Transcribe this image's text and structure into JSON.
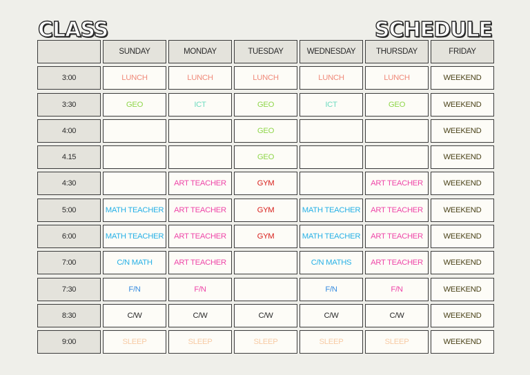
{
  "title": {
    "left": "CLASS",
    "right": "SCHEDULE"
  },
  "days": [
    "SUNDAY",
    "MONDAY",
    "TUESDAY",
    "WEDNESDAY",
    "THURSDAY",
    "FRIDAY"
  ],
  "colors": {
    "lunch": "#f08a7a",
    "geo": "#8fd64a",
    "ict": "#6fdcc0",
    "gym": "#d8201c",
    "art": "#ee46a8",
    "math": "#26b0e6",
    "fn_blue": "#3a8de0",
    "fn_pink": "#ee46a8",
    "cw": "#2a2a2a",
    "sleep": "#f7caa4",
    "weekend": "#4a4218",
    "empty": "#2a2a2a"
  },
  "rows": [
    {
      "time": "3:00",
      "cells": [
        {
          "text": "LUNCH",
          "color": "lunch"
        },
        {
          "text": "LUNCH",
          "color": "lunch"
        },
        {
          "text": "LUNCH",
          "color": "lunch"
        },
        {
          "text": "LUNCH",
          "color": "lunch"
        },
        {
          "text": "LUNCH",
          "color": "lunch"
        },
        {
          "text": "WEEKEND",
          "color": "weekend"
        }
      ]
    },
    {
      "time": "3:30",
      "cells": [
        {
          "text": "GEO",
          "color": "geo"
        },
        {
          "text": "ICT",
          "color": "ict"
        },
        {
          "text": "GEO",
          "color": "geo"
        },
        {
          "text": "ICT",
          "color": "ict"
        },
        {
          "text": "GEO",
          "color": "geo"
        },
        {
          "text": "WEEKEND",
          "color": "weekend"
        }
      ]
    },
    {
      "time": "4:00",
      "cells": [
        {
          "text": "",
          "color": "empty"
        },
        {
          "text": "",
          "color": "empty"
        },
        {
          "text": "GEO",
          "color": "geo"
        },
        {
          "text": "",
          "color": "empty"
        },
        {
          "text": "",
          "color": "empty"
        },
        {
          "text": "WEEKEND",
          "color": "weekend"
        }
      ]
    },
    {
      "time": "4.15",
      "cells": [
        {
          "text": "",
          "color": "empty"
        },
        {
          "text": "",
          "color": "empty"
        },
        {
          "text": "GEO",
          "color": "geo"
        },
        {
          "text": "",
          "color": "empty"
        },
        {
          "text": "",
          "color": "empty"
        },
        {
          "text": "WEEKEND",
          "color": "weekend"
        }
      ]
    },
    {
      "time": "4:30",
      "cells": [
        {
          "text": "",
          "color": "empty"
        },
        {
          "text": "ART TEACHER",
          "color": "art"
        },
        {
          "text": "GYM",
          "color": "gym"
        },
        {
          "text": "",
          "color": "empty"
        },
        {
          "text": "ART TEACHER",
          "color": "art"
        },
        {
          "text": "WEEKEND",
          "color": "weekend"
        }
      ]
    },
    {
      "time": "5:00",
      "cells": [
        {
          "text": "MATH TEACHER",
          "color": "math"
        },
        {
          "text": "ART TEACHER",
          "color": "art"
        },
        {
          "text": "GYM",
          "color": "gym"
        },
        {
          "text": "MATH TEACHER",
          "color": "math"
        },
        {
          "text": "ART TEACHER",
          "color": "art"
        },
        {
          "text": "WEEKEND",
          "color": "weekend"
        }
      ]
    },
    {
      "time": "6:00",
      "cells": [
        {
          "text": "MATH TEACHER",
          "color": "math"
        },
        {
          "text": "ART TEACHER",
          "color": "art"
        },
        {
          "text": "GYM",
          "color": "gym"
        },
        {
          "text": "MATH TEACHER",
          "color": "math"
        },
        {
          "text": "ART TEACHER",
          "color": "art"
        },
        {
          "text": "WEEKEND",
          "color": "weekend"
        }
      ]
    },
    {
      "time": "7:00",
      "cells": [
        {
          "text": "C/N MATH",
          "color": "math"
        },
        {
          "text": "ART TEACHER",
          "color": "art"
        },
        {
          "text": "",
          "color": "empty"
        },
        {
          "text": "C/N MATHS",
          "color": "math"
        },
        {
          "text": "ART TEACHER",
          "color": "art"
        },
        {
          "text": "WEEKEND",
          "color": "weekend"
        }
      ]
    },
    {
      "time": "7:30",
      "cells": [
        {
          "text": "F/N",
          "color": "fn_blue"
        },
        {
          "text": "F/N",
          "color": "fn_pink"
        },
        {
          "text": "",
          "color": "empty"
        },
        {
          "text": "F/N",
          "color": "fn_blue"
        },
        {
          "text": "F/N",
          "color": "fn_pink"
        },
        {
          "text": "WEEKEND",
          "color": "weekend"
        }
      ]
    },
    {
      "time": "8:30",
      "cells": [
        {
          "text": "C/W",
          "color": "cw"
        },
        {
          "text": "C/W",
          "color": "cw"
        },
        {
          "text": "C/W",
          "color": "cw"
        },
        {
          "text": "C/W",
          "color": "cw"
        },
        {
          "text": "C/W",
          "color": "cw"
        },
        {
          "text": "WEEKEND",
          "color": "weekend"
        }
      ]
    },
    {
      "time": "9:00",
      "cells": [
        {
          "text": "SLEEP",
          "color": "sleep"
        },
        {
          "text": "SLEEP",
          "color": "sleep"
        },
        {
          "text": "SLEEP",
          "color": "sleep"
        },
        {
          "text": "SLEEP",
          "color": "sleep"
        },
        {
          "text": "SLEEP",
          "color": "sleep"
        },
        {
          "text": "WEEKEND",
          "color": "weekend"
        }
      ]
    }
  ]
}
